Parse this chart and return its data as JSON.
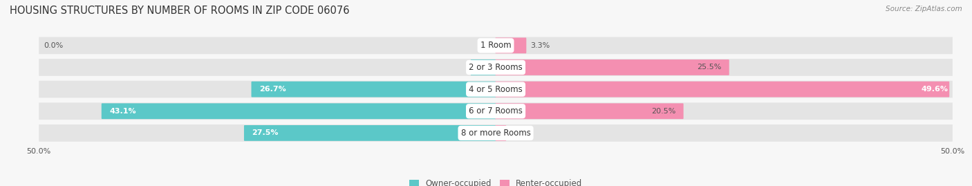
{
  "title": "HOUSING STRUCTURES BY NUMBER OF ROOMS IN ZIP CODE 06076",
  "source": "Source: ZipAtlas.com",
  "categories": [
    "1 Room",
    "2 or 3 Rooms",
    "4 or 5 Rooms",
    "6 or 7 Rooms",
    "8 or more Rooms"
  ],
  "owner_values": [
    0.0,
    2.7,
    26.7,
    43.1,
    27.5
  ],
  "renter_values": [
    3.3,
    25.5,
    49.6,
    20.5,
    1.1
  ],
  "owner_color": "#5bc8c8",
  "renter_color": "#f48fb1",
  "bg_color": "#f7f7f7",
  "bar_bg_color": "#e4e4e4",
  "label_color": "#555555",
  "axis_range": 50.0,
  "title_fontsize": 10.5,
  "tick_fontsize": 8,
  "bar_label_fontsize": 8,
  "cat_label_fontsize": 8.5,
  "legend_fontsize": 8.5,
  "source_fontsize": 7.5
}
